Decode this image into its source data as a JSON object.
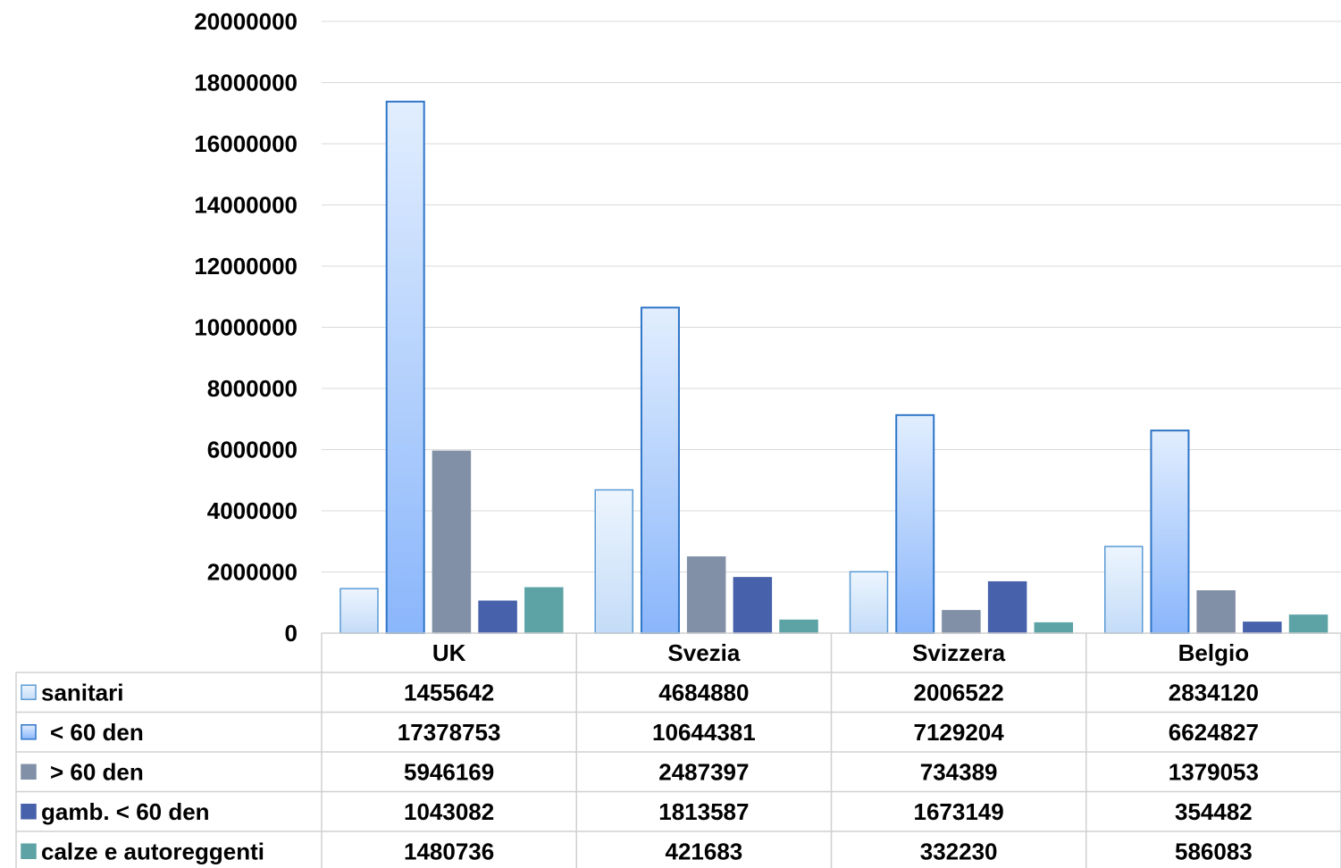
{
  "chart_data": {
    "type": "bar",
    "title": "",
    "xlabel": "",
    "ylabel": "",
    "ylim": [
      0,
      20000000
    ],
    "yticks": [
      "0",
      "2000000",
      "4000000",
      "6000000",
      "8000000",
      "10000000",
      "12000000",
      "14000000",
      "16000000",
      "18000000",
      "20000000"
    ],
    "grid": true,
    "legend": "data-table",
    "categories": [
      "UK",
      "Svezia",
      "Svizzera",
      "Belgio"
    ],
    "series": [
      {
        "name": "sanitari",
        "values": [
          1455642,
          4684880,
          2006522,
          2834120
        ],
        "labels": [
          "1455642",
          "4684880",
          "2006522",
          "2834120"
        ],
        "color": "#d7e8fb",
        "border": "#5b9bd5",
        "gradient": false
      },
      {
        "name": "< 60 den",
        "values": [
          17378753,
          10644381,
          7129204,
          6624827
        ],
        "labels": [
          "17378753",
          "10644381",
          "7129204",
          "6624827"
        ],
        "color": "#9ec2fb",
        "border": "#2e75c7",
        "gradient": true
      },
      {
        "name": "> 60 den",
        "values": [
          5946169,
          2487397,
          734389,
          1379053
        ],
        "labels": [
          "5946169",
          "2487397",
          "734389",
          "1379053"
        ],
        "color": "#8190a7",
        "border": "#8190a7",
        "gradient": false
      },
      {
        "name": "gamb. < 60 den",
        "values": [
          1043082,
          1813587,
          1673149,
          354482
        ],
        "labels": [
          "1043082",
          "1813587",
          "1673149",
          "354482"
        ],
        "color": "#4761ab",
        "border": "#4761ab",
        "gradient": false
      },
      {
        "name": "calze e autoreggenti",
        "values": [
          1480736,
          421683,
          332230,
          586083
        ],
        "labels": [
          "1480736",
          "421683",
          "332230",
          "586083"
        ],
        "color": "#5da3a6",
        "border": "#5da3a6",
        "gradient": false
      }
    ]
  }
}
